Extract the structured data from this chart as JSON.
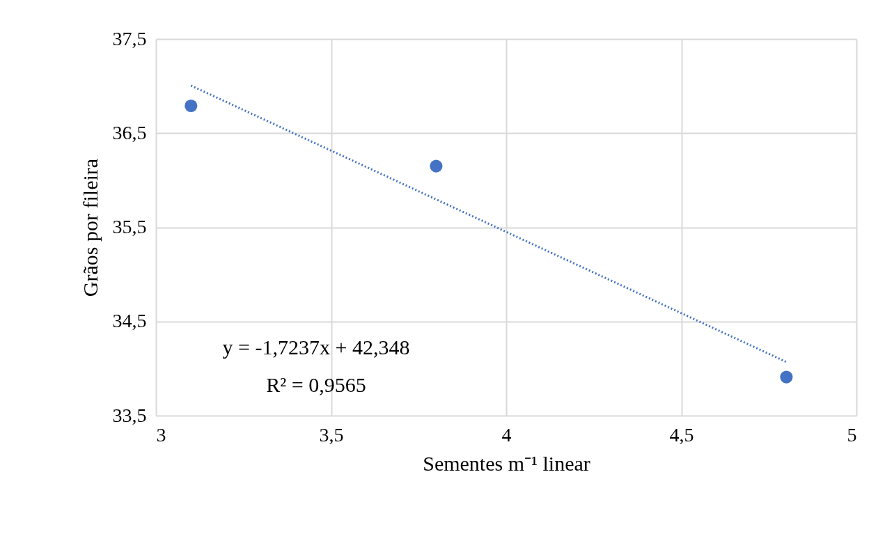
{
  "chart_data": {
    "type": "scatter",
    "xlabel": "Sementes m⁻¹ linear",
    "ylabel": "Grãos por fileira",
    "series": [
      {
        "type": "scatter",
        "color": "#4472c4",
        "x": [
          3.1,
          3.8,
          4.8
        ],
        "values": [
          36.79,
          36.15,
          33.91
        ],
        "marker": "circle"
      },
      {
        "type": "line",
        "color": "#4472c4",
        "x": [
          3.1,
          4.8
        ],
        "values": [
          37.005,
          34.07
        ],
        "line_style": "dotted",
        "marker": "none"
      }
    ],
    "xlim": [
      3,
      5
    ],
    "ylim": [
      33.5,
      37.5
    ],
    "xticks": [
      3,
      {
        "value": 3.5,
        "label": "3,5"
      },
      4,
      {
        "value": 4.5,
        "label": "4,5"
      },
      5
    ],
    "yticks": [
      {
        "value": 33.5,
        "label": "33,5"
      },
      {
        "value": 34.5,
        "label": "34,5"
      },
      {
        "value": 35.5,
        "label": "35,5"
      },
      {
        "value": 36.5,
        "label": "36,5"
      },
      {
        "value": 37.5,
        "label": "37,5"
      }
    ],
    "annotations": [
      "y = -1,7237x + 42,348",
      "R² = 0,9565"
    ],
    "grid": true
  }
}
